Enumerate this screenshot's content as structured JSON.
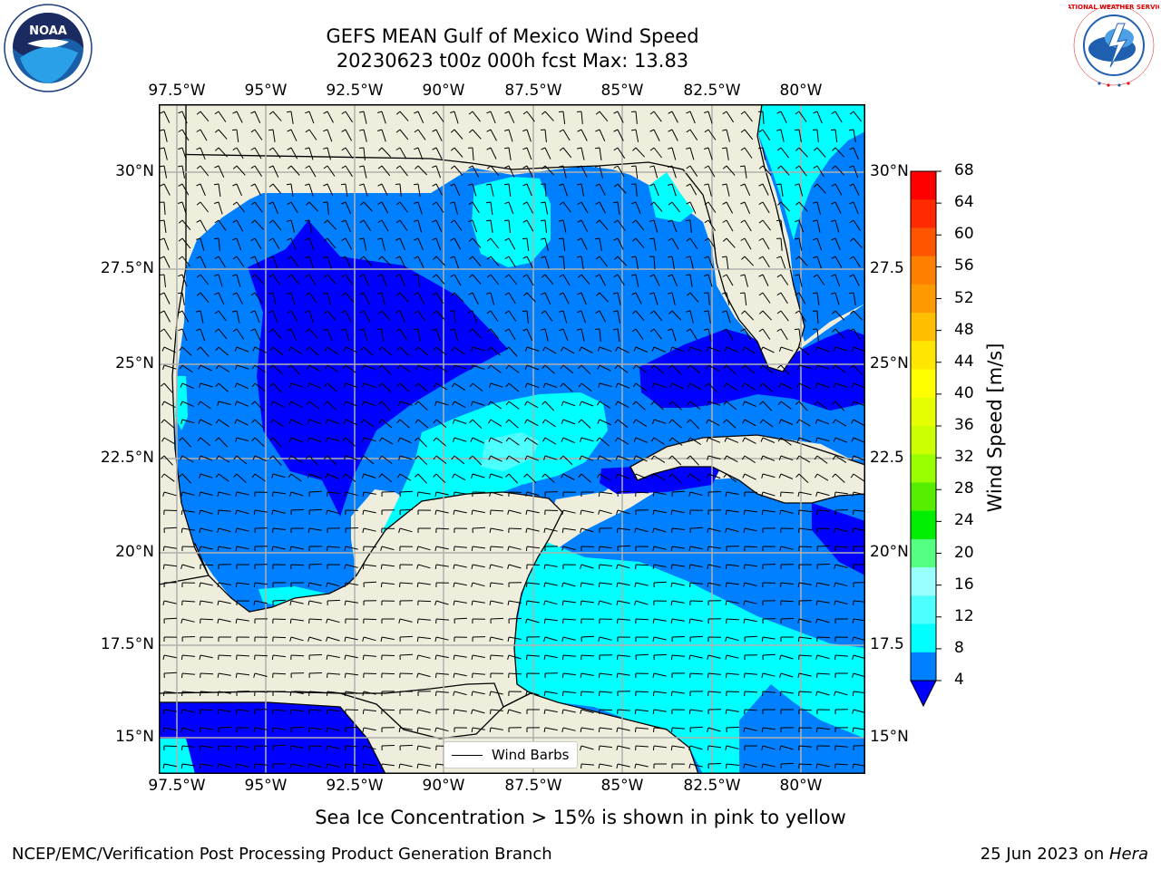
{
  "title": {
    "line1": "GEFS MEAN Gulf of Mexico Wind Speed",
    "line2": "20230623 t00z 000h fcst   Max: 13.83"
  },
  "logos": {
    "left": {
      "name": "noaa-logo",
      "text": "NOAA"
    },
    "right": {
      "name": "nws-logo",
      "text": "NATIONAL WEATHER SERVICE"
    }
  },
  "map": {
    "longitude_labels": [
      "97.5°W",
      "95°W",
      "92.5°W",
      "90°W",
      "87.5°W",
      "85°W",
      "82.5°W",
      "80°W"
    ],
    "latitude_labels_left": [
      "30°N",
      "27.5°N",
      "25°N",
      "22.5°N",
      "20°N",
      "17.5°N",
      "15°N"
    ],
    "latitude_labels_right": [
      "30°N",
      "27.5",
      "25°N",
      "22.5",
      "20°N",
      "17.5",
      "15°N"
    ],
    "legend_label": "Wind Barbs",
    "colors": {
      "land": "#efeedc",
      "speed_4_8": "#0080ff",
      "speed_8_12": "#00ffff",
      "speed_below_4": "#0000ff",
      "speed_12_16": "#4dffff",
      "grid": "#b0b0b0"
    }
  },
  "colorbar": {
    "title": "Wind Speed [m/s]",
    "ticks": [
      "68",
      "64",
      "60",
      "56",
      "52",
      "48",
      "44",
      "40",
      "36",
      "32",
      "28",
      "24",
      "20",
      "16",
      "12",
      "8",
      "4"
    ],
    "colors_top_to_bottom": [
      "#ff0000",
      "#ff2a00",
      "#ff5500",
      "#ff7f00",
      "#ff9900",
      "#ffbf00",
      "#ffe600",
      "#ffff00",
      "#e6ff00",
      "#ccff00",
      "#99ff00",
      "#55ee00",
      "#00ee00",
      "#55ff80",
      "#99ffff",
      "#4dffff",
      "#00ffff",
      "#0080ff"
    ],
    "extend_color": "#0000ff"
  },
  "caption": "Sea Ice Concentration > 15% is shown in pink to yellow",
  "footer": {
    "left": "NCEP/EMC/Verification Post Processing Product Generation Branch",
    "right_date": "25 Jun 2023 on ",
    "right_host": "Hera"
  }
}
